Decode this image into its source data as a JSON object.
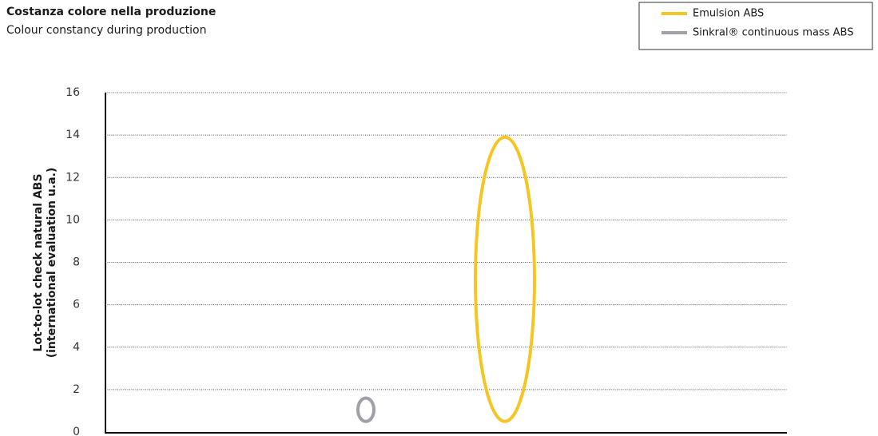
{
  "chart_data": {
    "type": "range",
    "title": "Costanza colore nella produzione",
    "subtitle": "Colour constancy during production",
    "ylabel": [
      "Lot-to-lot check natural ABS",
      "(international evaluation u.a.)"
    ],
    "ylim": [
      0,
      16
    ],
    "yticks": [
      0,
      2,
      4,
      6,
      8,
      10,
      12,
      14,
      16
    ],
    "grid": true,
    "series": [
      {
        "name": "Emulsion ABS",
        "color": "#f5c623",
        "values": [
          0.5,
          13.9
        ]
      },
      {
        "name": "Sinkral® continuous mass ABS",
        "color": "#a0a0a8",
        "values": [
          0.5,
          1.6
        ]
      }
    ]
  }
}
